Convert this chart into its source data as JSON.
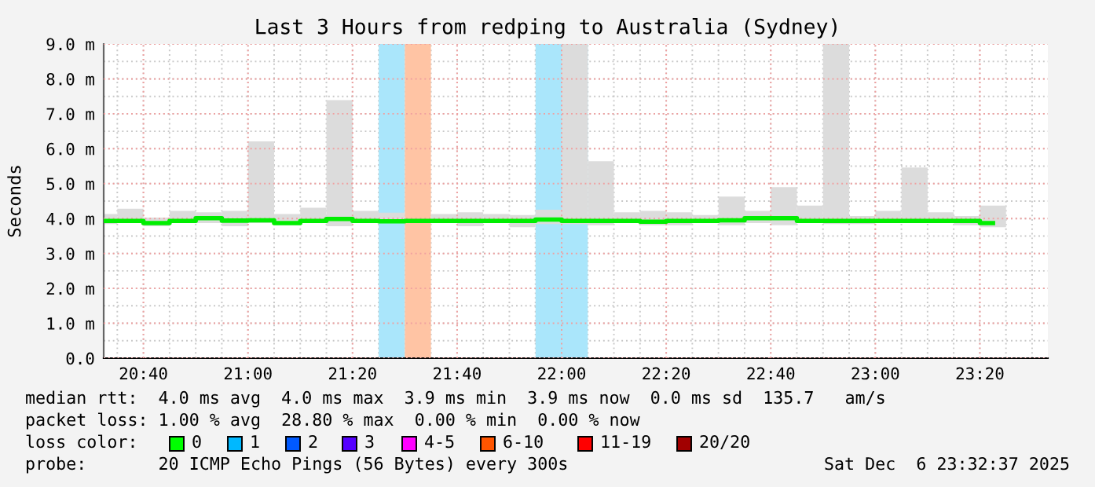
{
  "chart_data": {
    "type": "bar",
    "title": "Last 3 Hours from redping to Australia (Sydney)",
    "ylabel": "Seconds",
    "x": [
      20.5417,
      20.625,
      20.7083,
      20.7917,
      20.875,
      20.9583,
      21.0417,
      21.125,
      21.2083,
      21.2917,
      21.375,
      21.4583,
      21.5417,
      21.625,
      21.7083,
      21.7917,
      21.875,
      21.9583,
      22.0417,
      22.125,
      22.2083,
      22.2917,
      22.375,
      22.4583,
      22.5417,
      22.625,
      22.7083,
      22.7917,
      22.875,
      22.9583,
      23.0417,
      23.125,
      23.2083,
      23.2917,
      23.375
    ],
    "series": [
      {
        "color": "#dcdcdc",
        "base": [
          3.84,
          3.87,
          3.78,
          3.87,
          3.87,
          3.78,
          3.87,
          3.81,
          3.87,
          3.78,
          3.87,
          3.87,
          null,
          3.87,
          3.78,
          3.87,
          3.75,
          3.84,
          3.84,
          3.81,
          3.87,
          3.81,
          3.81,
          3.87,
          3.81,
          3.87,
          3.81,
          3.87,
          3.84,
          3.84,
          3.87,
          3.87,
          3.87,
          3.81,
          3.75
        ],
        "values": [
          0.29,
          0.41,
          0.25,
          0.35,
          0.31,
          0.44,
          2.34,
          0.32,
          0.44,
          3.61,
          0.35,
          0.3,
          null,
          0.26,
          0.4,
          0.26,
          0.35,
          0.41,
          5.16,
          1.83,
          0.31,
          0.41,
          0.37,
          0.23,
          0.82,
          0.35,
          1.09,
          0.5,
          5.16,
          0.23,
          0.35,
          1.59,
          0.31,
          0.26,
          0.62
        ]
      },
      {
        "type": "step",
        "color": "#00ee00",
        "values": [
          3.93,
          3.93,
          3.87,
          3.93,
          4.01,
          3.94,
          3.95,
          3.87,
          3.93,
          3.99,
          3.93,
          3.92,
          3.93,
          3.93,
          3.93,
          3.93,
          3.93,
          3.97,
          3.93,
          3.93,
          3.93,
          3.91,
          3.93,
          3.93,
          3.95,
          4.01,
          4.01,
          3.93,
          3.93,
          3.93,
          3.93,
          3.93,
          3.93,
          3.93,
          3.87
        ]
      }
    ],
    "bands": [
      {
        "axis": "x",
        "from": 21.4167,
        "to": 21.5,
        "color": "#aae6fb"
      },
      {
        "axis": "x",
        "from": 21.5,
        "to": 21.5833,
        "color": "#ffc4a4"
      },
      {
        "axis": "x",
        "from": 21.9167,
        "to": 22.0833,
        "color": "#aae6fb"
      }
    ],
    "xlim": [
      20.54,
      23.55
    ],
    "xticks": [
      {
        "value": 20.6667,
        "label": "20:40"
      },
      {
        "value": 21.0,
        "label": "21:00"
      },
      {
        "value": 21.3333,
        "label": "21:20"
      },
      {
        "value": 21.6667,
        "label": "21:40"
      },
      {
        "value": 22.0,
        "label": "22:00"
      },
      {
        "value": 22.3333,
        "label": "22:20"
      },
      {
        "value": 22.6667,
        "label": "22:40"
      },
      {
        "value": 23.0,
        "label": "23:00"
      },
      {
        "value": 23.3333,
        "label": "23:20"
      }
    ],
    "ylim": [
      0,
      9
    ],
    "yticks": [
      {
        "value": 0,
        "label": "0.0"
      },
      {
        "value": 1,
        "label": "1.0 m"
      },
      {
        "value": 2,
        "label": "2.0 m"
      },
      {
        "value": 3,
        "label": "3.0 m"
      },
      {
        "value": 4,
        "label": "4.0 m"
      },
      {
        "value": 5,
        "label": "5.0 m"
      },
      {
        "value": 6,
        "label": "6.0 m"
      },
      {
        "value": 7,
        "label": "7.0 m"
      },
      {
        "value": 8,
        "label": "8.0 m"
      },
      {
        "value": 9,
        "label": "9.0 m"
      }
    ],
    "grid": true,
    "annotations": [
      "median rtt:  4.0 ms avg  4.0 ms max  3.9 ms min  3.9 ms now  0.0 ms sd  135.7   am/s",
      "packet loss: 1.00 % avg  28.80 % max  0.00 % min  0.00 % now",
      "loss color:",
      "0",
      "1",
      "2",
      "3",
      "4-5",
      "6-10",
      "11-19",
      "20/20",
      "probe:       20 ICMP Echo Pings (56 Bytes) every 300s",
      "Sat Dec  6 23:32:37 2025"
    ]
  }
}
